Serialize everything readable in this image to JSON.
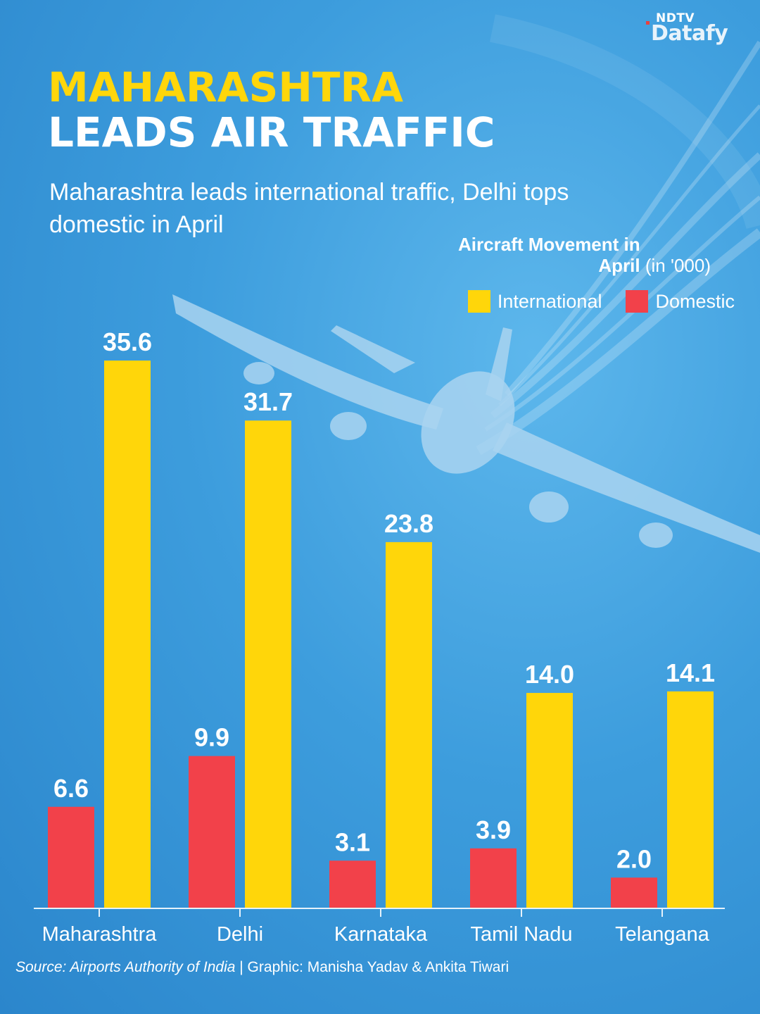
{
  "brand": {
    "top": "NDTV",
    "main": "Datafy"
  },
  "header": {
    "title_line1": "MAHARASHTRA",
    "title_line2": "LEADS AIR TRAFFIC",
    "subtitle": "Maharashtra leads international traffic, Delhi tops domestic in April"
  },
  "legend": {
    "title_bold": "Aircraft Movement in April",
    "title_unit": "(in '000)",
    "items": [
      {
        "label": "International",
        "color": "#ffd60a"
      },
      {
        "label": "Domestic",
        "color": "#f2414a"
      }
    ]
  },
  "footer": {
    "source_label": "Source: Airports Authority of India",
    "credit": " | Graphic: Manisha Yadav & Ankita Tiwari"
  },
  "chart_data": {
    "type": "bar",
    "title": "Aircraft Movement in April",
    "ylabel": "(in '000)",
    "categories": [
      "Maharashtra",
      "Delhi",
      "Karnataka",
      "Tamil Nadu",
      "Telangana"
    ],
    "series": [
      {
        "name": "Domestic",
        "color": "#f2414a",
        "values": [
          6.6,
          9.9,
          3.1,
          3.9,
          2.0
        ]
      },
      {
        "name": "International",
        "color": "#ffd60a",
        "values": [
          35.6,
          31.7,
          23.8,
          14.0,
          14.1
        ]
      }
    ],
    "value_labels": {
      "Domestic": [
        "6.6",
        "9.9",
        "3.1",
        "3.9",
        "2.0"
      ],
      "International": [
        "35.6",
        "31.7",
        "23.8",
        "14.0",
        "14.1"
      ]
    },
    "ylim": [
      0,
      35.6
    ],
    "grid": false,
    "legend_position": "top-right"
  }
}
